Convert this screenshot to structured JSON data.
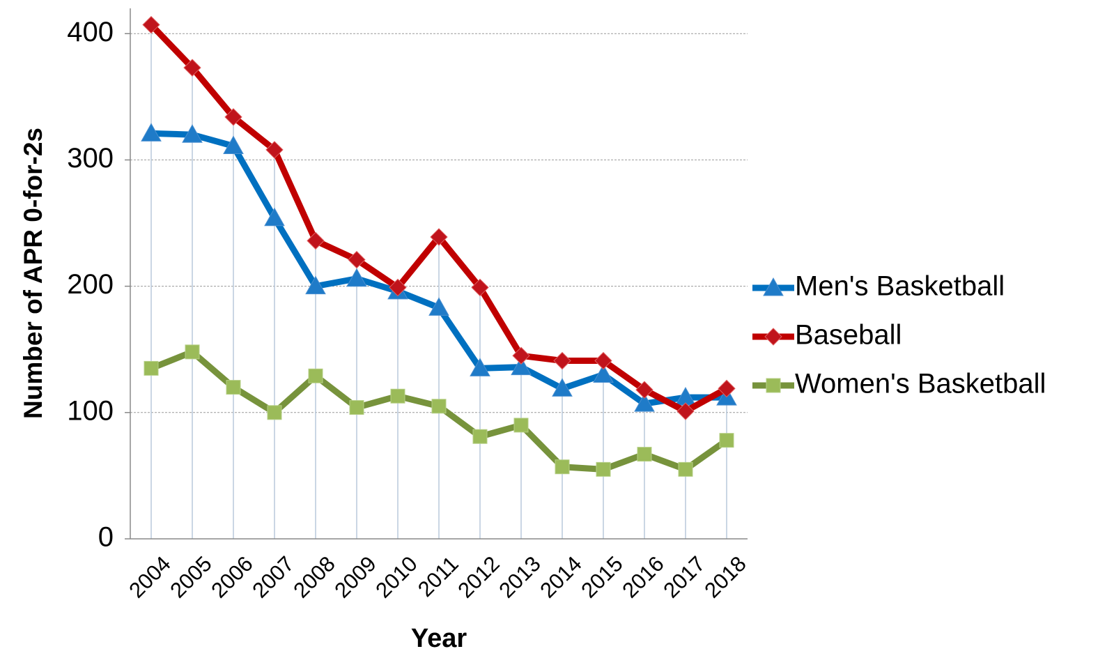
{
  "chart_data": {
    "type": "line",
    "y_label": "Number of APR 0-for-2s",
    "x_label": "Year",
    "categories": [
      "2004",
      "2005",
      "2006",
      "2007",
      "2008",
      "2009",
      "2010",
      "2011",
      "2012",
      "2013",
      "2014",
      "2015",
      "2016",
      "2017",
      "2018"
    ],
    "series": [
      {
        "name": "Men's Basketball",
        "color": "#0070c0",
        "marker_color": "#1f7bc8",
        "marker": "triangle",
        "values": [
          321,
          320,
          311,
          254,
          200,
          206,
          196,
          183,
          135,
          136,
          119,
          130,
          107,
          112,
          112
        ]
      },
      {
        "name": "Baseball",
        "color": "#c00000",
        "marker_color": "#c0141c",
        "marker": "diamond",
        "values": [
          407,
          373,
          334,
          308,
          236,
          221,
          199,
          239,
          199,
          145,
          141,
          141,
          118,
          101,
          119
        ]
      },
      {
        "name": "Women's Basketball",
        "color": "#77933c",
        "marker_color": "#9bbb59",
        "marker": "square",
        "values": [
          135,
          148,
          120,
          100,
          129,
          104,
          113,
          105,
          81,
          90,
          57,
          55,
          67,
          55,
          78
        ]
      }
    ],
    "ylim": [
      0,
      420
    ],
    "yticks": [
      0,
      100,
      200,
      300,
      400
    ],
    "grid": true,
    "drop_lines": true,
    "legend": "right"
  }
}
